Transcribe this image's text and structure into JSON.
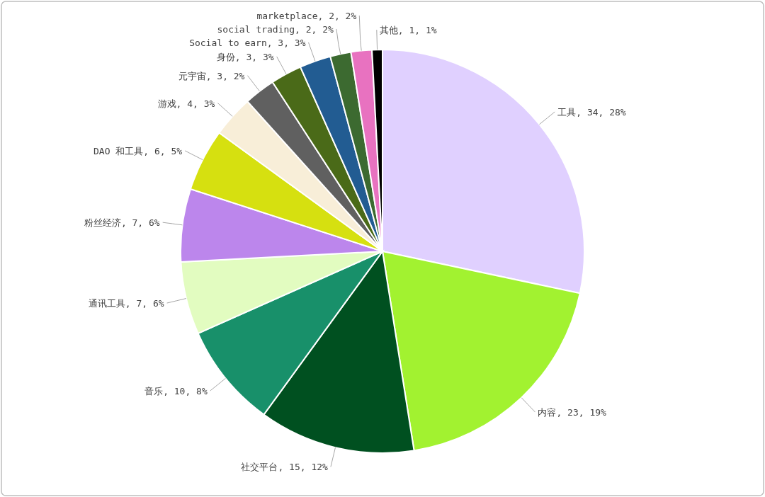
{
  "chart_data": {
    "type": "pie",
    "categories": [
      "工具",
      "内容",
      "社交平台",
      "音乐",
      "通讯工具",
      "粉丝经济",
      "DAO 和工具",
      "游戏",
      "元宇宙",
      "身份",
      "Social to earn",
      "social trading",
      "marketplace",
      "其他"
    ],
    "values": [
      34,
      23,
      15,
      10,
      7,
      7,
      6,
      4,
      3,
      3,
      3,
      2,
      2,
      1
    ],
    "value_labels": [
      "34, 28%",
      "23, 19%",
      "15, 12%",
      "10, 8%",
      "7, 6%",
      "7, 6%",
      "6, 5%",
      "4, 3%",
      "3, 2%",
      "3, 3%",
      "3, 3%",
      "2, 2%",
      "2, 2%",
      "1, 1%"
    ],
    "colors": [
      "#e0d0ff",
      "#a2f230",
      "#005020",
      "#18906a",
      "#e2fcc0",
      "#bc86ec",
      "#d6e010",
      "#f8eed8",
      "#606060",
      "#4a6a18",
      "#225c92",
      "#3c6a30",
      "#e872c0",
      "#000000"
    ],
    "legend": false
  }
}
